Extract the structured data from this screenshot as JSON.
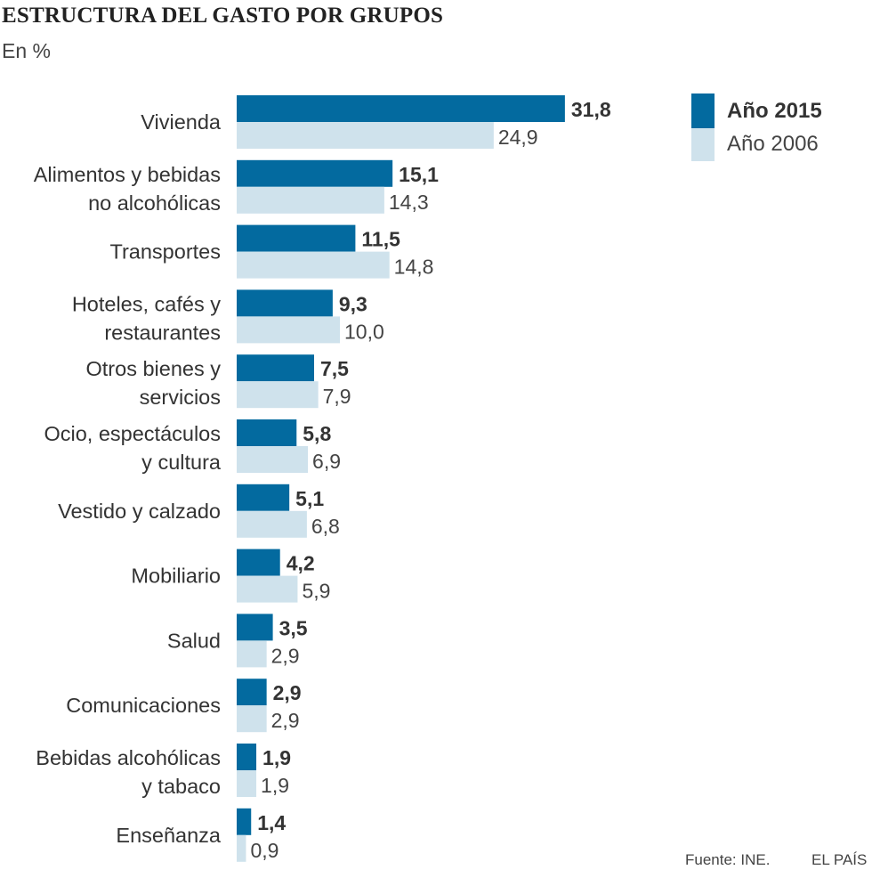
{
  "title": "ESTRUCTURA DEL GASTO POR GRUPOS",
  "subtitle": "En %",
  "source": "Fuente: INE.",
  "brand": "EL PAÍS",
  "colors": {
    "year2015": "#036a9f",
    "year2006": "#cfe2ec"
  },
  "chart_data": {
    "type": "bar",
    "orientation": "horizontal",
    "title": "ESTRUCTURA DEL GASTO POR GRUPOS",
    "subtitle": "En %",
    "xlim": [
      0,
      32
    ],
    "categories": [
      [
        "Vivienda"
      ],
      [
        "Alimentos y bebidas",
        "no  alcohólicas"
      ],
      [
        "Transportes"
      ],
      [
        "Hoteles, cafés y",
        "restaurantes"
      ],
      [
        "Otros bienes y",
        "servicios"
      ],
      [
        "Ocio, espectáculos",
        "y cultura"
      ],
      [
        "Vestido y calzado"
      ],
      [
        "Mobiliario"
      ],
      [
        "Salud"
      ],
      [
        "Comunicaciones"
      ],
      [
        "Bebidas alcohólicas",
        "y tabaco"
      ],
      [
        "Enseñanza"
      ]
    ],
    "series": [
      {
        "name": "Año 2015",
        "values": [
          31.8,
          15.1,
          11.5,
          9.3,
          7.5,
          5.8,
          5.1,
          4.2,
          3.5,
          2.9,
          1.9,
          1.4
        ],
        "labels": [
          "31,8",
          "15,1",
          "11,5",
          "9,3",
          "7,5",
          "5,8",
          "5,1",
          "4,2",
          "3,5",
          "2,9",
          "1,9",
          "1,4"
        ]
      },
      {
        "name": "Año 2006",
        "values": [
          24.9,
          14.3,
          14.8,
          10.0,
          7.9,
          6.9,
          6.8,
          5.9,
          2.9,
          2.9,
          1.9,
          0.9
        ],
        "labels": [
          "24,9",
          "14,3",
          "14,8",
          "10,0",
          "7,9",
          "6,9",
          "6,8",
          "5,9",
          "2,9",
          "2,9",
          "1,9",
          "0,9"
        ]
      }
    ],
    "legend_position": "top-right"
  }
}
